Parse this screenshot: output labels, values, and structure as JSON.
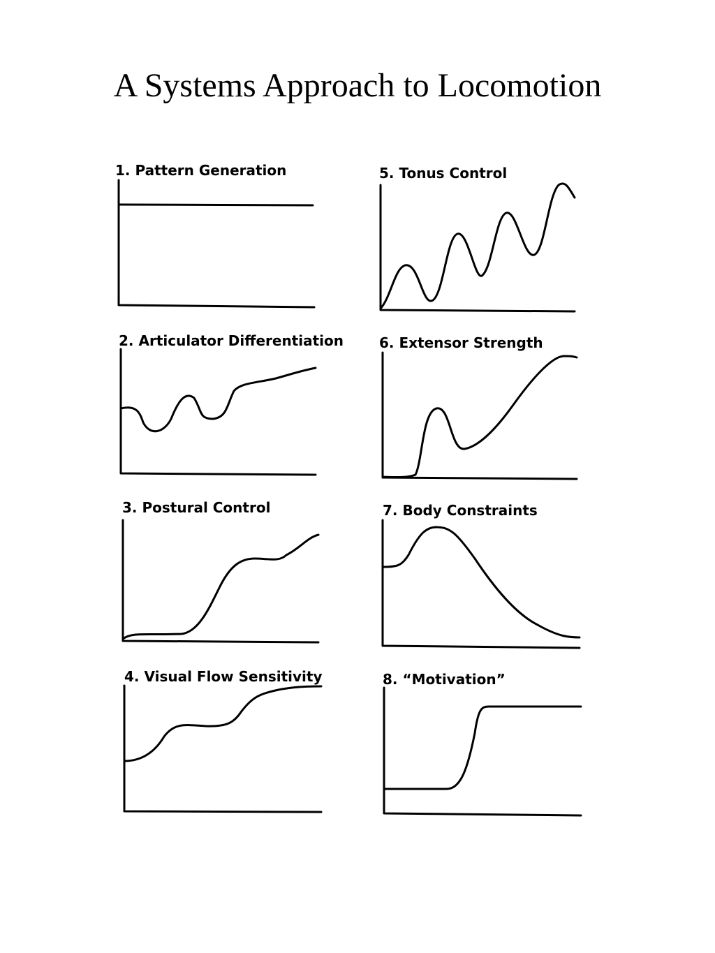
{
  "title": "A Systems Approach to Locomotion",
  "panels": [
    {
      "label": "1. Pattern Generation"
    },
    {
      "label": "2. Articulator Differentiation"
    },
    {
      "label": "3. Postural Control"
    },
    {
      "label": "4. Visual Flow Sensitivity"
    },
    {
      "label": "5. Tonus Control"
    },
    {
      "label": "6. Extensor Strength"
    },
    {
      "label": "7. Body Constraints"
    },
    {
      "label": "8. “Motivation”"
    }
  ]
}
